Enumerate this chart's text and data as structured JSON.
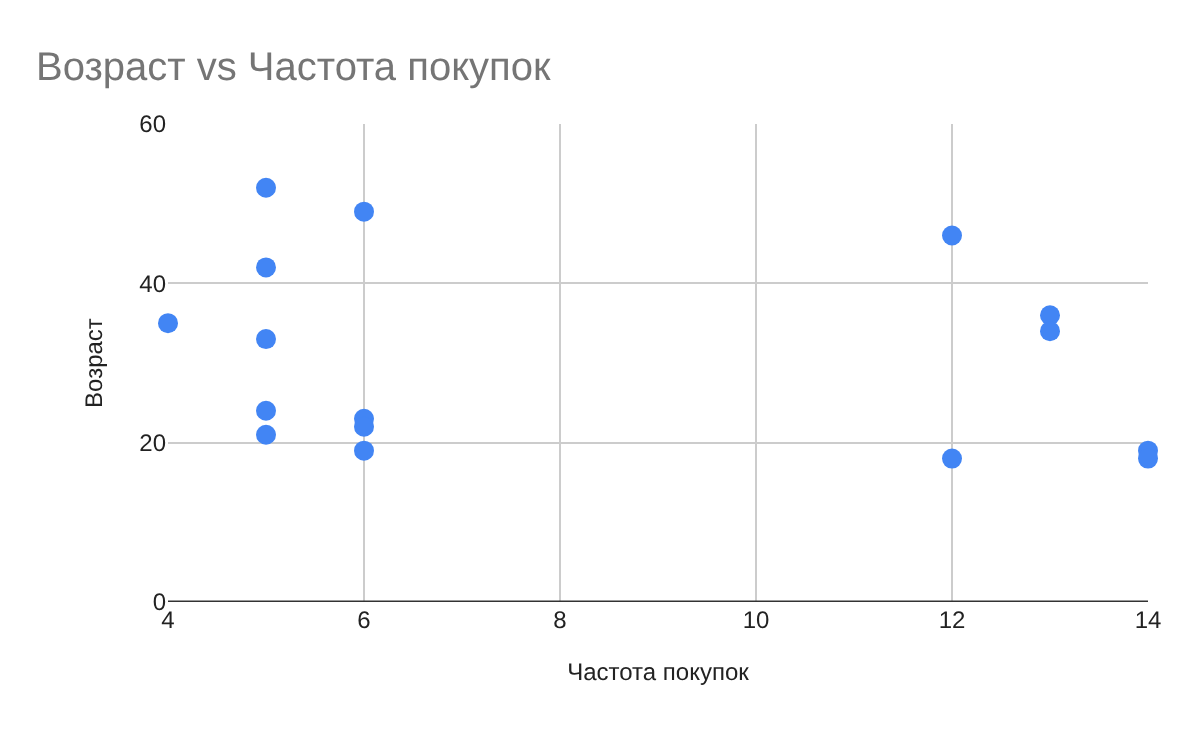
{
  "chart_data": {
    "type": "scatter",
    "title": "Возраст vs Частота покупок",
    "xlabel": "Частота покупок",
    "ylabel": "Возраст",
    "x": [
      4,
      5,
      5,
      5,
      5,
      5,
      6,
      6,
      6,
      6,
      12,
      12,
      13,
      13,
      14,
      14
    ],
    "series": [
      {
        "color": "#4285f4",
        "values": [
          35,
          52,
          42,
          33,
          24,
          21,
          49,
          23,
          22,
          19,
          46,
          18,
          36,
          34,
          19,
          18
        ]
      }
    ],
    "xlim": [
      4,
      14
    ],
    "xticks": [
      4,
      6,
      8,
      10,
      12,
      14
    ],
    "ylim": [
      0,
      60
    ],
    "yticks": [
      0,
      20,
      40,
      60
    ],
    "grid": true,
    "marker": "circle"
  }
}
